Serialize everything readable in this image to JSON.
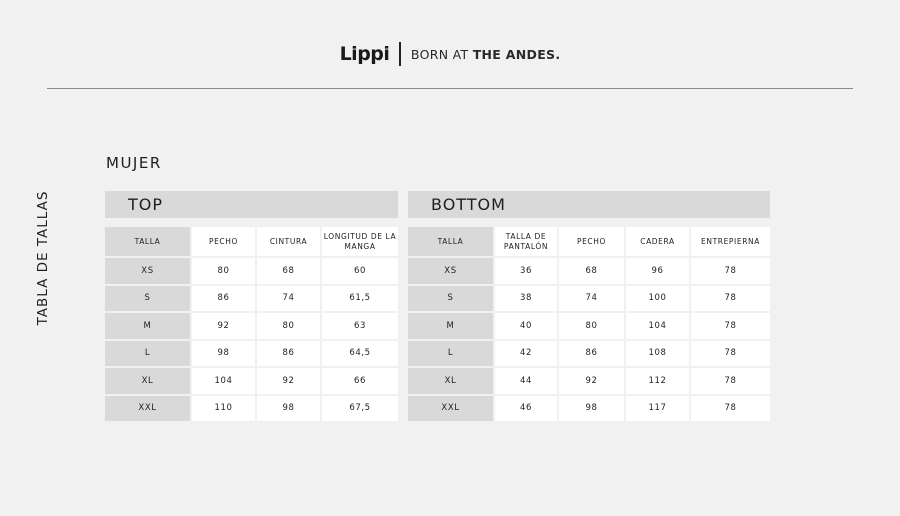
{
  "header": {
    "logo": "Lippi",
    "tagline_light": "BORN AT ",
    "tagline_bold": "THE ANDES."
  },
  "side_title": "TABLA DE TALLAS",
  "section": "MUJER",
  "top": {
    "title": "TOP",
    "columns": [
      "TALLA",
      "PECHO",
      "CINTURA",
      "LONGITUD DE LA MANGA"
    ],
    "rows": [
      [
        "XS",
        "80",
        "68",
        "60"
      ],
      [
        "S",
        "86",
        "74",
        "61,5"
      ],
      [
        "M",
        "92",
        "80",
        "63"
      ],
      [
        "L",
        "98",
        "86",
        "64,5"
      ],
      [
        "XL",
        "104",
        "92",
        "66"
      ],
      [
        "XXL",
        "110",
        "98",
        "67,5"
      ]
    ]
  },
  "bottom": {
    "title": "BOTTOM",
    "columns": [
      "TALLA",
      "TALLA DE PANTALÓN",
      "PECHO",
      "CADERA",
      "ENTREPIERNA"
    ],
    "rows": [
      [
        "XS",
        "36",
        "68",
        "96",
        "78"
      ],
      [
        "S",
        "38",
        "74",
        "100",
        "78"
      ],
      [
        "M",
        "40",
        "80",
        "104",
        "78"
      ],
      [
        "L",
        "42",
        "86",
        "108",
        "78"
      ],
      [
        "XL",
        "44",
        "92",
        "112",
        "78"
      ],
      [
        "XXL",
        "46",
        "98",
        "117",
        "78"
      ]
    ]
  }
}
